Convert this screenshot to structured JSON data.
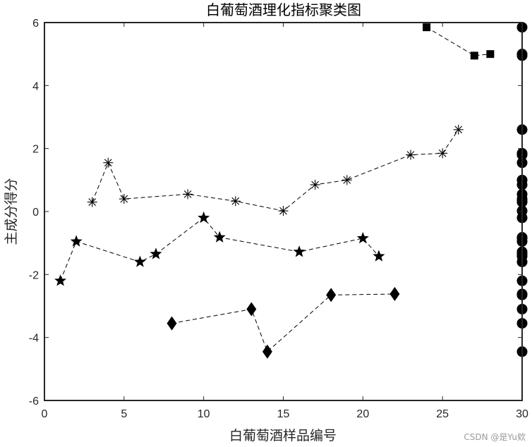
{
  "watermark": "CSDN @是Yu欸",
  "chart_data": {
    "type": "scatter",
    "title": "白葡萄酒理化指标聚类图",
    "xlabel": "白葡萄酒样品编号",
    "ylabel": "主成分得分",
    "xlim": [
      0,
      30
    ],
    "ylim": [
      -6,
      6
    ],
    "xticks": [
      0,
      5,
      10,
      15,
      20,
      25,
      30
    ],
    "yticks": [
      -6,
      -4,
      -2,
      0,
      2,
      4,
      6
    ],
    "grid": false,
    "legend": "none",
    "series": [
      {
        "marker": "square",
        "line": "dashed",
        "x": [
          24,
          27,
          28
        ],
        "y": [
          5.85,
          4.95,
          5.0
        ]
      },
      {
        "marker": "asterisk",
        "line": "dashed",
        "x": [
          3,
          4,
          5,
          9,
          12,
          15,
          17,
          19,
          23,
          25,
          26
        ],
        "y": [
          0.3,
          1.55,
          0.4,
          0.55,
          0.33,
          0.02,
          0.85,
          1.0,
          1.8,
          1.85,
          2.6
        ]
      },
      {
        "marker": "star",
        "line": "dashed",
        "x": [
          1,
          2,
          6,
          7,
          10,
          11,
          16,
          20,
          21
        ],
        "y": [
          -2.2,
          -0.95,
          -1.6,
          -1.35,
          -0.2,
          -0.82,
          -1.28,
          -0.85,
          -1.42
        ]
      },
      {
        "marker": "diamond",
        "line": "dashed",
        "x": [
          8,
          13,
          14,
          18,
          22
        ],
        "y": [
          -3.55,
          -3.1,
          -4.45,
          -2.65,
          -2.62
        ]
      },
      {
        "marker": "circle",
        "line": "none",
        "x": [
          30,
          30,
          30,
          30,
          30,
          30,
          30,
          30,
          30,
          30,
          30,
          30,
          30,
          30,
          30,
          30,
          30,
          30,
          30,
          30,
          30,
          30,
          30,
          30,
          30,
          30,
          30,
          30
        ],
        "y": [
          5.85,
          4.95,
          2.6,
          1.85,
          1.8,
          1.55,
          1.0,
          0.85,
          0.55,
          0.4,
          0.33,
          0.3,
          0.02,
          -0.2,
          -0.82,
          -0.85,
          -0.95,
          -1.28,
          -1.35,
          -1.42,
          -1.6,
          -2.2,
          -2.62,
          -2.65,
          -3.1,
          -3.55,
          -4.45,
          5.0
        ]
      }
    ]
  }
}
